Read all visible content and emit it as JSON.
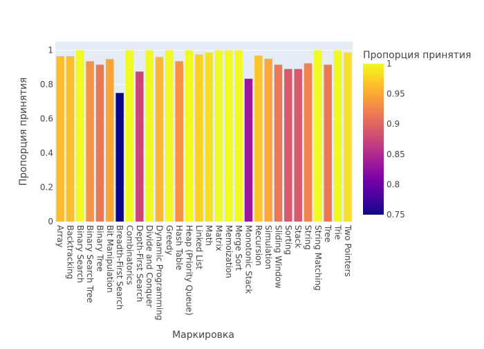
{
  "chart_data": {
    "type": "bar",
    "xlabel": "Маркировка",
    "ylabel": "Пропорция принятия",
    "ylim": [
      0,
      1.05
    ],
    "yticks": [
      0,
      0.2,
      0.4,
      0.6,
      0.8,
      1
    ],
    "ytick_labels": [
      "0",
      "0.2",
      "0.4",
      "0.6",
      "0.8",
      "1"
    ],
    "grid": true,
    "colorbar": {
      "title": "Пропорция принятия",
      "min": 0.75,
      "max": 1.0,
      "ticks": [
        0.75,
        0.8,
        0.85,
        0.9,
        0.95,
        1
      ],
      "tick_labels": [
        "0.75",
        "0.8",
        "0.85",
        "0.9",
        "0.95",
        "1"
      ],
      "colorscale": "plasma"
    },
    "categories": [
      "Array",
      "Backtracking",
      "Binary Search",
      "Binary Search Tree",
      "Binary Tree",
      "Bit Manipulation",
      "Breadth-First Search",
      "Combinatorics",
      "Depth-First Search",
      "Divide and Conquer",
      "Dynamic Programming",
      "Greedy",
      "Hash Table",
      "Heap (Priority Queue)",
      "Linked List",
      "Math",
      "Matrix",
      "Memoization",
      "Merge Sort",
      "Monotonic Stack",
      "Recursion",
      "Simulation",
      "Sliding Window",
      "Sorting",
      "Stack",
      "String",
      "String Matching",
      "Tree",
      "Trie",
      "Two Pointers"
    ],
    "values": [
      0.965,
      0.965,
      1.0,
      0.935,
      0.915,
      0.948,
      0.75,
      1.0,
      0.875,
      1.0,
      0.96,
      1.0,
      0.935,
      1.0,
      0.975,
      0.985,
      1.0,
      1.0,
      1.0,
      0.833,
      0.968,
      0.95,
      0.915,
      0.89,
      0.89,
      0.923,
      1.0,
      0.915,
      1.0,
      0.985
    ]
  }
}
